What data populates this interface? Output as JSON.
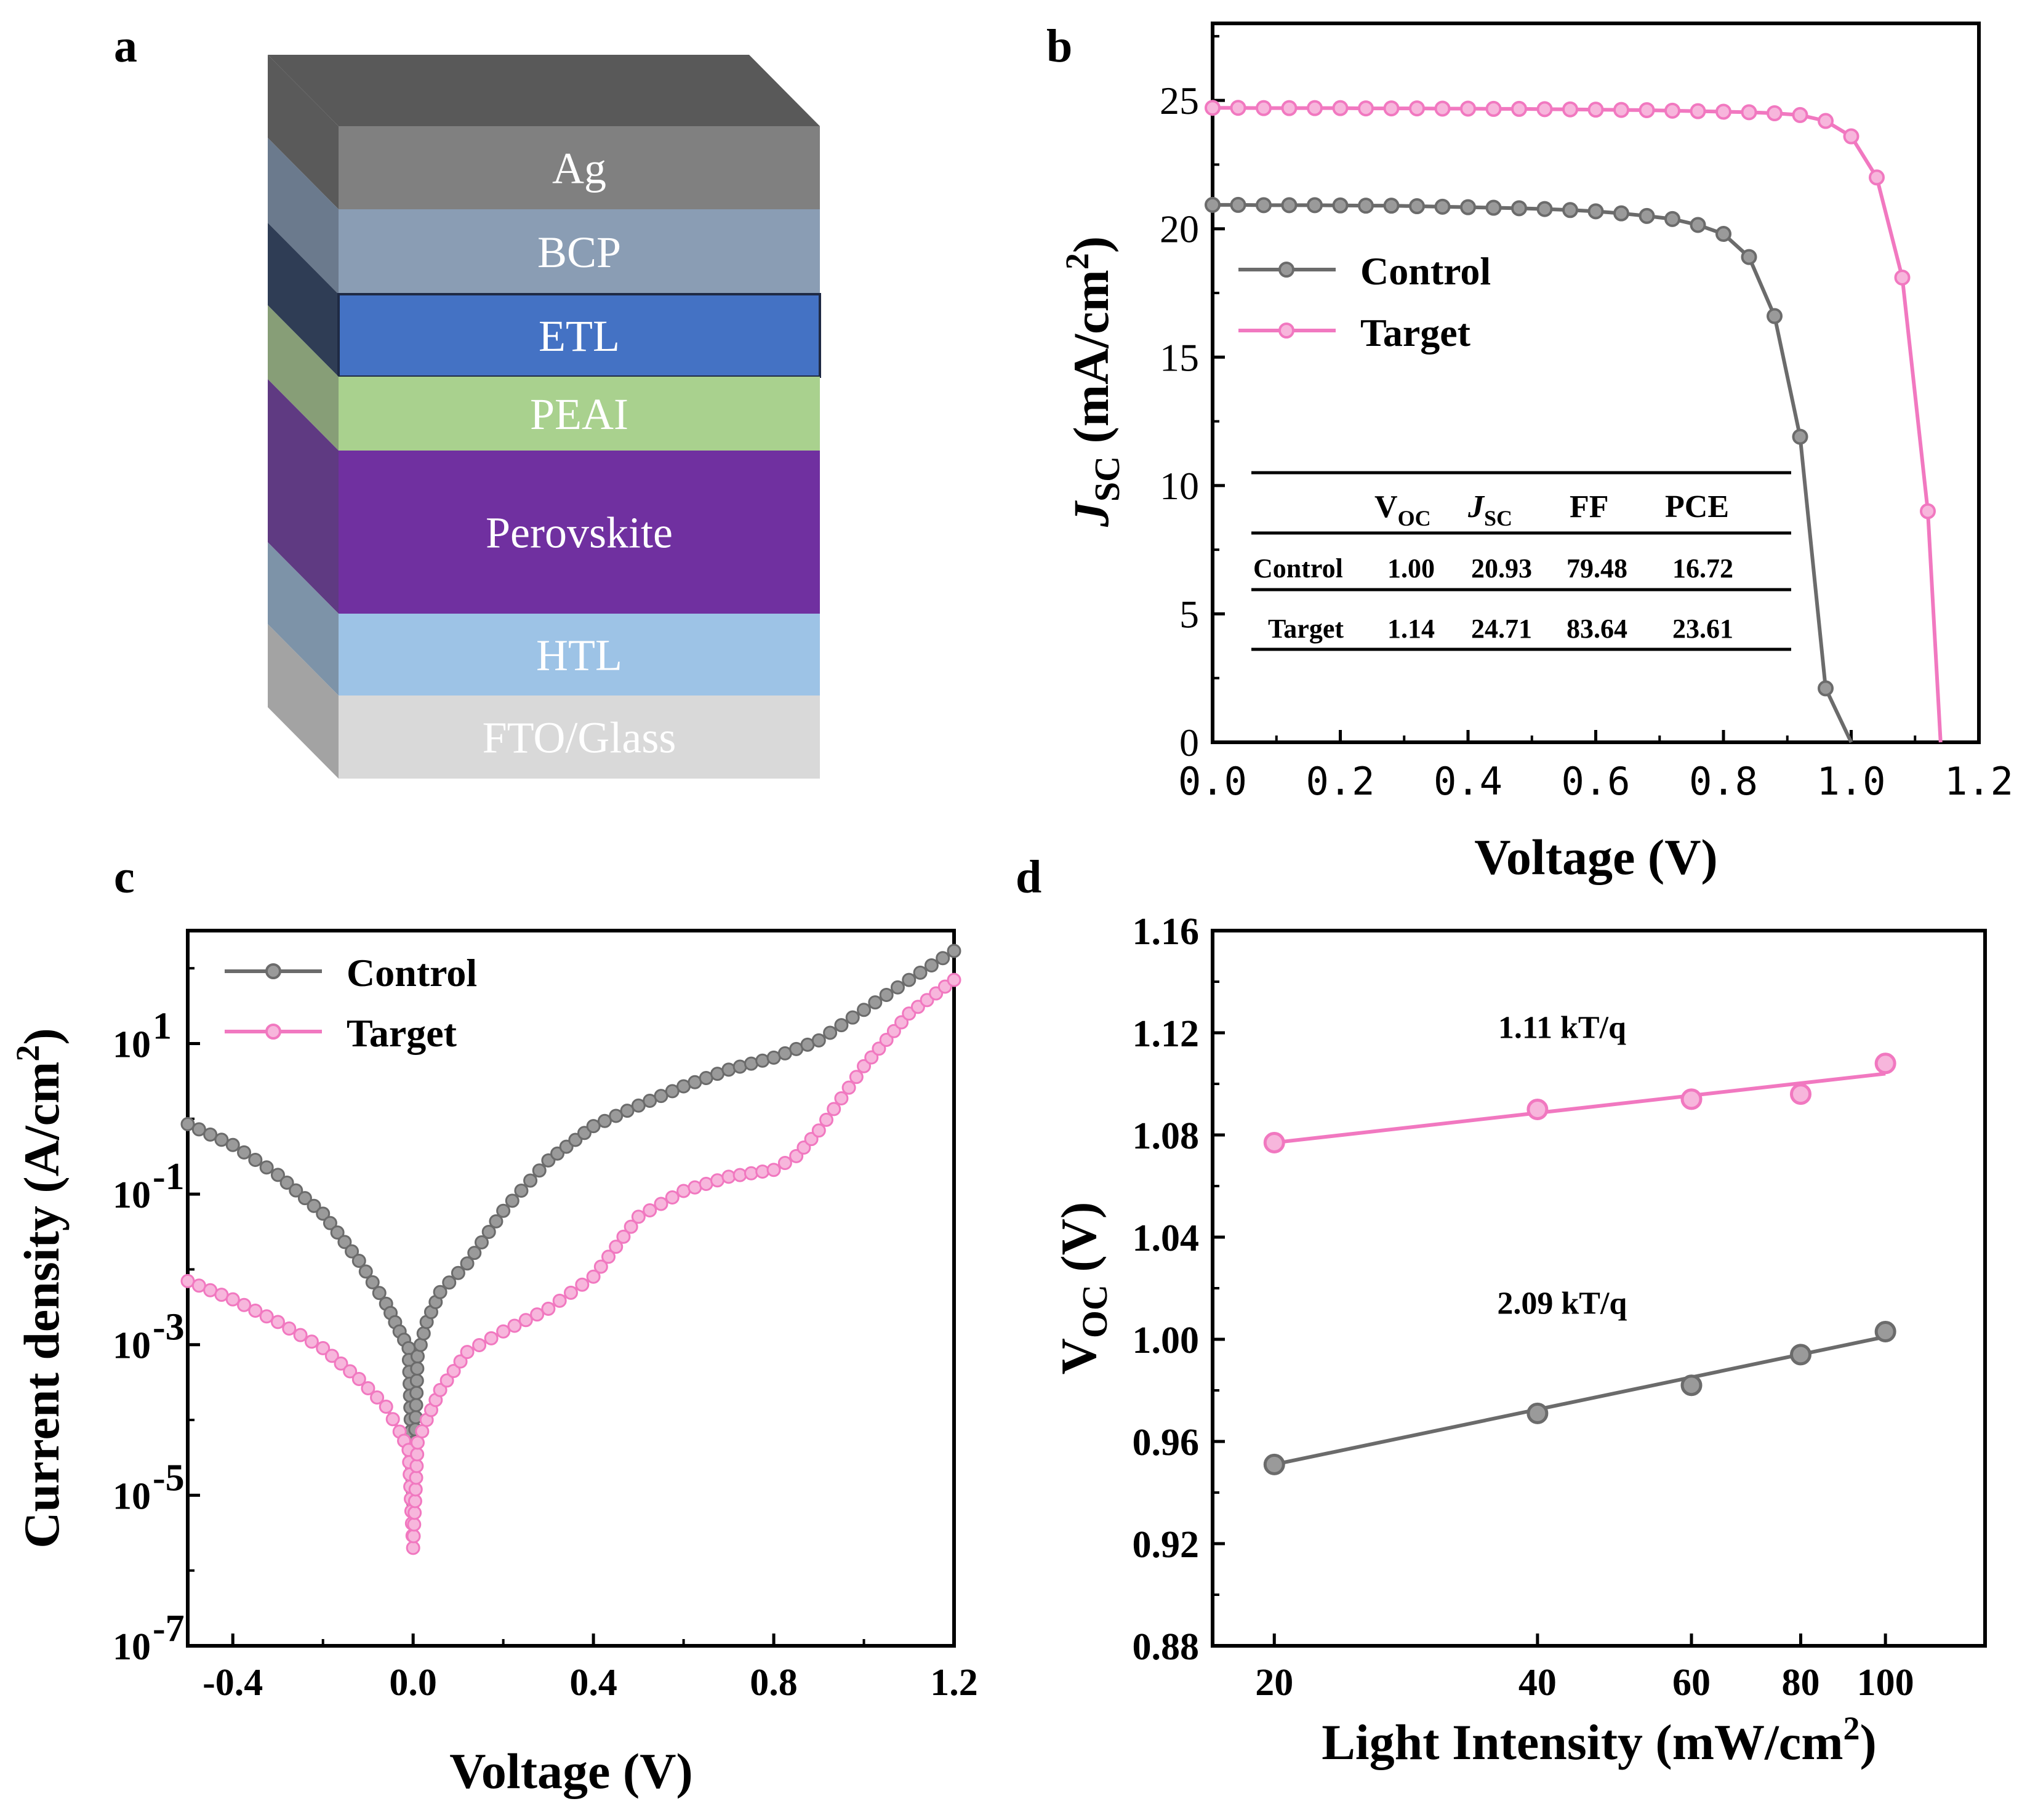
{
  "panels": {
    "a": "a",
    "b": "b",
    "c": "c",
    "d": "d"
  },
  "colors": {
    "control": "#6b6b6b",
    "target": "#f178c0"
  },
  "device_stack": {
    "layers": [
      {
        "label": "Ag",
        "front": "#808080",
        "side": "#5a5a5a"
      },
      {
        "label": "BCP",
        "front": "#8a9db4",
        "side": "#6b7a8d"
      },
      {
        "label": "ETL",
        "front": "#4472c4",
        "side": "#2f3d55"
      },
      {
        "label": "PEAI",
        "front": "#a9d18e",
        "side": "#879e77"
      },
      {
        "label": "Perovskite",
        "front": "#7030a0",
        "side": "#5f3a82"
      },
      {
        "label": "HTL",
        "front": "#9dc3e6",
        "side": "#7d93a8"
      },
      {
        "label": "FTO/Glass",
        "front": "#d9d9d9",
        "side": "#a3a3a3"
      }
    ],
    "top_color": "#595959"
  },
  "chart_data": [
    {
      "id": "b",
      "type": "line",
      "title": "",
      "xlabel": "Voltage (V)",
      "ylabel": {
        "main": "J",
        "sub": "SC",
        "unit": " (mA/cm",
        "sup": "2",
        "close": ")"
      },
      "xlim": [
        0,
        1.2
      ],
      "ylim": [
        0,
        28
      ],
      "xticks": [
        "0.0",
        "0.2",
        "0.4",
        "0.6",
        "0.8",
        "1.0",
        "1.2"
      ],
      "xtick_values": [
        0,
        0.2,
        0.4,
        0.6,
        0.8,
        1.0,
        1.2
      ],
      "yticks": [
        "0",
        "5",
        "10",
        "15",
        "20",
        "25"
      ],
      "ytick_values": [
        0,
        5,
        10,
        15,
        20,
        25
      ],
      "legend": [
        "Control",
        "Target"
      ],
      "series": [
        {
          "name": "Control",
          "x": [
            0,
            0.04,
            0.08,
            0.12,
            0.16,
            0.2,
            0.24,
            0.28,
            0.32,
            0.36,
            0.4,
            0.44,
            0.48,
            0.52,
            0.56,
            0.6,
            0.64,
            0.68,
            0.72,
            0.76,
            0.8,
            0.84,
            0.88,
            0.92,
            0.96,
            1.0
          ],
          "y": [
            20.93,
            20.93,
            20.92,
            20.92,
            20.92,
            20.91,
            20.9,
            20.9,
            20.88,
            20.86,
            20.84,
            20.82,
            20.8,
            20.77,
            20.73,
            20.68,
            20.6,
            20.5,
            20.38,
            20.15,
            19.8,
            18.9,
            16.6,
            11.9,
            2.1,
            0
          ]
        },
        {
          "name": "Target",
          "x": [
            0,
            0.04,
            0.08,
            0.12,
            0.16,
            0.2,
            0.24,
            0.28,
            0.32,
            0.36,
            0.4,
            0.44,
            0.48,
            0.52,
            0.56,
            0.6,
            0.64,
            0.68,
            0.72,
            0.76,
            0.8,
            0.84,
            0.88,
            0.92,
            0.96,
            1.0,
            1.04,
            1.08,
            1.12,
            1.14
          ],
          "y": [
            24.71,
            24.71,
            24.7,
            24.7,
            24.7,
            24.7,
            24.69,
            24.69,
            24.69,
            24.68,
            24.68,
            24.67,
            24.67,
            24.66,
            24.65,
            24.64,
            24.63,
            24.62,
            24.6,
            24.58,
            24.56,
            24.54,
            24.5,
            24.43,
            24.2,
            23.6,
            22.0,
            18.1,
            9.0,
            0
          ]
        }
      ],
      "table": {
        "headers": [
          "",
          "V",
          "J",
          "FF",
          "PCE"
        ],
        "header_subs": [
          "",
          "OC",
          "SC",
          "",
          ""
        ],
        "rows": [
          [
            "Control",
            "1.00",
            "20.93",
            "79.48",
            "16.72"
          ],
          [
            "Target",
            "1.14",
            "24.71",
            "83.64",
            "23.61"
          ]
        ]
      }
    },
    {
      "id": "c",
      "type": "line",
      "yscale": "log",
      "xlabel": "Voltage (V)",
      "ylabel": {
        "main": "Current density (A/cm",
        "sup": "2",
        "close": ")"
      },
      "xlim": [
        -0.5,
        1.2
      ],
      "ylim_log10": [
        -7,
        2.5
      ],
      "xticks": [
        "-0.4",
        "0.0",
        "0.4",
        "0.8",
        "1.2"
      ],
      "xtick_values": [
        -0.4,
        0.0,
        0.4,
        0.8,
        1.2
      ],
      "ytick_exponents": [
        "1",
        "-1",
        "-3",
        "-5",
        "-7"
      ],
      "ytick_log_values": [
        1,
        -1,
        -3,
        -5,
        -7
      ],
      "ytick_base": "10",
      "legend": [
        "Control",
        "Target"
      ],
      "series": [
        {
          "name": "Control",
          "x": [
            -0.5,
            -0.4,
            -0.3,
            -0.2,
            -0.12,
            -0.06,
            -0.03,
            -0.01,
            0,
            0.01,
            0.03,
            0.06,
            0.12,
            0.2,
            0.3,
            0.4,
            0.5,
            0.6,
            0.7,
            0.8,
            0.9,
            1.0,
            1.1,
            1.2
          ],
          "y": [
            0.85,
            0.45,
            0.18,
            0.055,
            0.013,
            0.0035,
            0.0015,
            0.0009,
            8e-06,
            0.0007,
            0.002,
            0.005,
            0.012,
            0.06,
            0.28,
            0.8,
            1.5,
            2.7,
            4.5,
            6.5,
            11,
            28,
            70,
            170
          ]
        },
        {
          "name": "Target",
          "x": [
            -0.5,
            -0.4,
            -0.3,
            -0.2,
            -0.12,
            -0.06,
            -0.03,
            -0.01,
            0,
            0.01,
            0.03,
            0.06,
            0.12,
            0.2,
            0.3,
            0.4,
            0.5,
            0.6,
            0.7,
            0.8,
            0.85,
            0.9,
            1.0,
            1.1,
            1.2
          ],
          "y": [
            0.007,
            0.004,
            0.002,
            0.0009,
            0.00035,
            0.00015,
            7e-05,
            4e-05,
            2e-06,
            5e-05,
            0.0001,
            0.00025,
            0.0008,
            0.0015,
            0.003,
            0.008,
            0.05,
            0.11,
            0.17,
            0.21,
            0.32,
            0.7,
            5,
            25,
            70
          ]
        }
      ]
    },
    {
      "id": "d",
      "type": "scatter",
      "xscale": "log",
      "xlabel": {
        "main": "Light Intensity (mW/cm",
        "sup": "2",
        "close": ")"
      },
      "ylabel": {
        "main": "V",
        "sub": "OC",
        "unit": " (V)"
      },
      "xlim": [
        17,
        130
      ],
      "ylim": [
        0.88,
        1.16
      ],
      "xticks": [
        "20",
        "40",
        "60",
        "80",
        "100"
      ],
      "xtick_values": [
        20,
        40,
        60,
        80,
        100
      ],
      "yticks": [
        "0.88",
        "0.92",
        "0.96",
        "1.00",
        "1.04",
        "1.08",
        "1.12",
        "1.16"
      ],
      "ytick_values": [
        0.88,
        0.92,
        0.96,
        1.0,
        1.04,
        1.08,
        1.12,
        1.16
      ],
      "series": [
        {
          "name": "Target",
          "x": [
            20,
            40,
            60,
            80,
            100
          ],
          "y": [
            1.077,
            1.09,
            1.094,
            1.096,
            1.108
          ],
          "fit": [
            1.077,
            1.104
          ],
          "annotation": "1.11 kT/q"
        },
        {
          "name": "Control",
          "x": [
            20,
            40,
            60,
            80,
            100
          ],
          "y": [
            0.951,
            0.971,
            0.982,
            0.994,
            1.003
          ],
          "fit": [
            0.951,
            1.001
          ],
          "annotation": "2.09 kT/q"
        }
      ]
    }
  ]
}
